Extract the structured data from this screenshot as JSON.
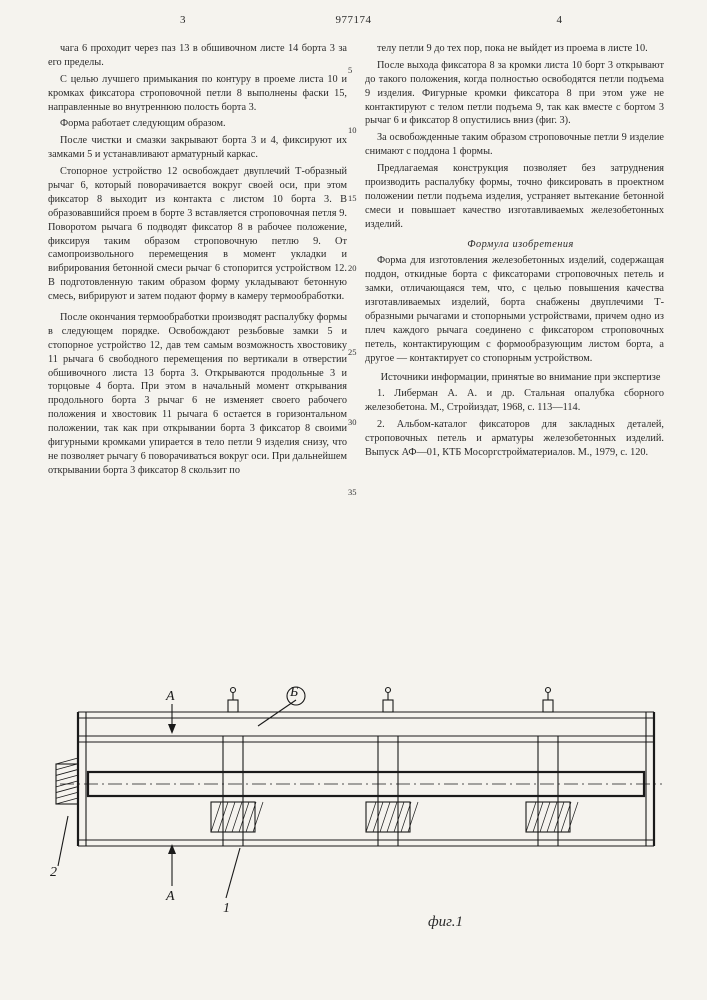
{
  "doc_number": "977174",
  "page_left": "3",
  "page_right": "4",
  "gutter_marks": [
    "5",
    "10",
    "15",
    "20",
    "25",
    "30",
    "35"
  ],
  "col_left": [
    "чага 6 проходит через паз 13 в обшивочном листе 14 борта 3 за его пределы.",
    "С целью лучшего примыкания по контуру в проеме листа 10 и кромках фиксатора строповочной петли 8 выполнены фаски 15, направленные во внутреннюю полость борта 3.",
    "Форма работает следующим образом.",
    "После чистки и смазки закрывают борта 3 и 4, фиксируют их замками 5 и устанавливают арматурный каркас.",
    "Стопорное устройство 12 освобождает двуплечий Т-образный рычаг 6, который поворачивается вокруг своей оси, при этом фиксатор 8 выходит из контакта с листом 10 борта 3. В образовавшийся проем в борте 3 вставляется строповочная петля 9. Поворотом рычага 6 подводят фиксатор 8 в рабочее положение, фиксируя таким образом строповочную петлю 9. От самопроизвольного перемещения в момент укладки и вибрирования бетонной смеси рычаг 6 стопорится устройством 12. В подготовленную таким образом форму укладывают бетонную смесь, вибрируют и затем подают форму в камеру термообработки.",
    "После окончания термообработки производят распалубку формы в следующем порядке. Освобождают резьбовые замки 5 и стопорное устройство 12, дав тем самым возможность хвостовику 11 рычага 6 свободного перемещения по вертикали в отверстии обшивочного листа 13 борта 3. Открываются продольные 3 и торцовые 4 борта. При этом в начальный момент открывания продольного борта 3 рычаг 6 не изменяет своего рабочего положения и хвостовик 11 рычага 6 остается в горизонтальном положении, так как при открывании борта 3 фиксатор 8 своими фигурными кромками упирается в тело петли 9 изделия снизу, что не позволяет рычагу 6 поворачиваться вокруг оси. При дальнейшем открывании борта 3 фиксатор 8 скользит по"
  ],
  "col_right": [
    "телу петли 9 до тех пор, пока не выйдет из проема в листе 10.",
    "После выхода фиксатора 8 за кромки листа 10 борт 3 открывают до такого положения, когда полностью освободятся петли подъема 9 изделия. Фигурные кромки фиксатора 8 при этом уже не контактируют с телом петли подъема 9, так как вместе с бортом 3 рычаг 6 и фиксатор 8 опустились вниз (фиг. 3).",
    "За освобожденные таким образом строповочные петли 9 изделие снимают с поддона 1 формы.",
    "Предлагаемая конструкция позволяет без затруднения производить распалубку формы, точно фиксировать в проектном положении петли подъема изделия, устраняет вытекание бетонной смеси и повышает качество изготавливаемых железобетонных изделий."
  ],
  "formula_title": "Формула изобретения",
  "formula_body": "Форма для изготовления железобетонных изделий, содержащая поддон, откидные борта с фиксаторами строповочных петель и замки, отличающаяся тем, что, с целью повышения качества изготавливаемых изделий, борта снабжены двуплечими Т-образными рычагами и стопорными устройствами, причем одно из плеч каждого рычага соединено с фиксатором строповочных петель, контактирующим с формообразующим листом борта, а другое — контактирует со стопорным устройством.",
  "refs_title": "Источники информации, принятые во внимание при экспертизе",
  "refs": [
    "1. Либерман А. А. и др. Стальная опалубка сборного железобетона. М., Стройиздат, 1968, с. 113—114.",
    "2. Альбом-каталог фиксаторов для закладных деталей, строповочных петель и арматуры железобетонных изделий. Выпуск АФ—01, КТБ Мосоргстройматериалов. М., 1979, с. 120."
  ],
  "figure": {
    "label": "фиг.1",
    "ref_labels": {
      "one": "1",
      "two": "2",
      "A_top": "А",
      "A_bottom": "А",
      "B": "Б"
    },
    "stroke": "#1a1a1a",
    "thin": 1.1,
    "thick": 2.2,
    "hatch_gap": 6
  }
}
